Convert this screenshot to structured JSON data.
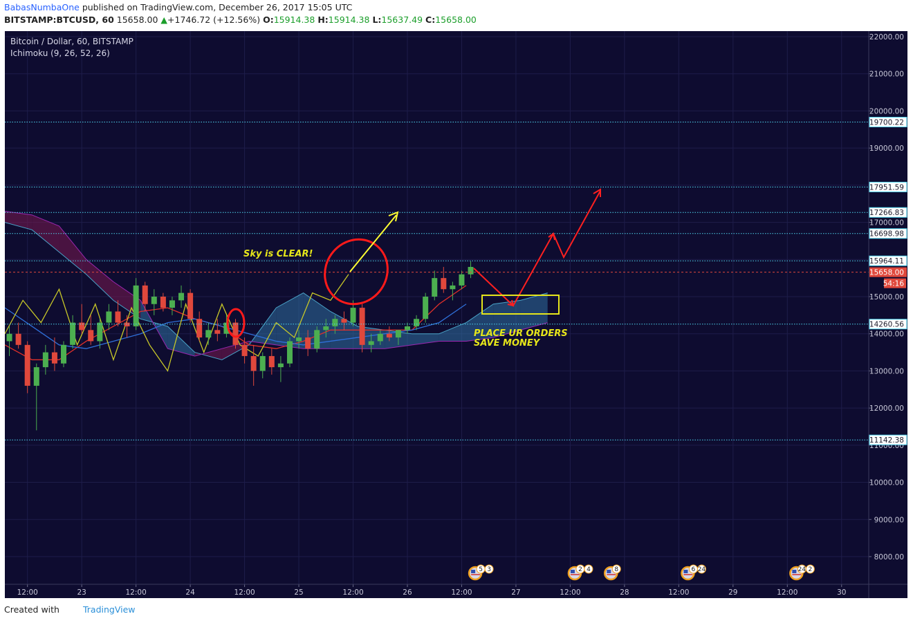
{
  "header": {
    "author": "BabasNumbaOne",
    "published": "published on TradingView.com, December 26, 2017 15:05 UTC",
    "symbol": "BITSTAMP:BTCUSD, 60",
    "last": "15658.00",
    "arrow": "▲",
    "change": "+1746.72 (+12.56%)",
    "o_label": "O:",
    "open": "15914.38",
    "h_label": "H:",
    "high": "15914.38",
    "l_label": "L:",
    "low": "15637.49",
    "c_label": "C:",
    "close": "15658.00"
  },
  "footer": {
    "created": "Created with",
    "brand": "TradingView"
  },
  "chart_data": {
    "type": "candlestick",
    "legend": [
      "Bitcoin / Dollar, 60, BITSTAMP",
      "Ichimoku (9, 26, 52, 26)"
    ],
    "background": "#0e0c30",
    "grid": true,
    "up_color": "#4caf50",
    "down_color": "#e0483c",
    "xlim": [
      7,
      198
    ],
    "xticks": [
      {
        "value": 12,
        "label": "12:00"
      },
      {
        "value": 24,
        "label": "23"
      },
      {
        "value": 36,
        "label": "12:00"
      },
      {
        "value": 48,
        "label": "24"
      },
      {
        "value": 60,
        "label": "12:00"
      },
      {
        "value": 72,
        "label": "25"
      },
      {
        "value": 84,
        "label": "12:00"
      },
      {
        "value": 96,
        "label": "26"
      },
      {
        "value": 108,
        "label": "12:00"
      },
      {
        "value": 120,
        "label": "27"
      },
      {
        "value": 132,
        "label": "12:00"
      },
      {
        "value": 144,
        "label": "28"
      },
      {
        "value": 156,
        "label": "12:00"
      },
      {
        "value": 168,
        "label": "29"
      },
      {
        "value": 180,
        "label": "12:00"
      },
      {
        "value": 192,
        "label": "30"
      }
    ],
    "ylim": [
      7255,
      22149
    ],
    "yticks": [
      {
        "value": 8000,
        "label": "8000.00"
      },
      {
        "value": 9000,
        "label": "9000.00"
      },
      {
        "value": 10000,
        "label": "10000.00"
      },
      {
        "value": 11000,
        "label": "11000.00"
      },
      {
        "value": 12000,
        "label": "12000.00"
      },
      {
        "value": 13000,
        "label": "13000.00"
      },
      {
        "value": 14000,
        "label": "14000.00"
      },
      {
        "value": 15000,
        "label": "15000.00"
      },
      {
        "value": 16000,
        "label": "16000.00"
      },
      {
        "value": 17000,
        "label": "17000.00"
      },
      {
        "value": 18000,
        "label": "18000.00"
      },
      {
        "value": 19000,
        "label": "19000.00"
      },
      {
        "value": 20000,
        "label": "20000.00"
      },
      {
        "value": 21000,
        "label": "21000.00"
      },
      {
        "value": 22000,
        "label": "22000.00"
      }
    ],
    "levels": [
      {
        "value": 19700.22,
        "label": "19700.22"
      },
      {
        "value": 17951.59,
        "label": "17951.59"
      },
      {
        "value": 17266.83,
        "label": "17266.83"
      },
      {
        "value": 16698.98,
        "label": "16698.98"
      },
      {
        "value": 15964.11,
        "label": "15964.11"
      },
      {
        "value": 14260.56,
        "label": "14260.56"
      },
      {
        "value": 11142.38,
        "label": "11142.38"
      }
    ],
    "level_color": "#4fd6f0",
    "current_price": {
      "value": 15658,
      "label": "15658.00"
    },
    "countdown": "54:16",
    "current_color": "#e0483c",
    "x": [
      8,
      10,
      12,
      14,
      16,
      18,
      20,
      22,
      24,
      26,
      28,
      30,
      32,
      34,
      36,
      38,
      40,
      42,
      44,
      46,
      48,
      50,
      52,
      54,
      56,
      58,
      60,
      62,
      64,
      66,
      68,
      70,
      72,
      74,
      76,
      78,
      80,
      82,
      84,
      86,
      88,
      90,
      92,
      94,
      96,
      98,
      100,
      102,
      104,
      106,
      108,
      110
    ],
    "open": [
      13800,
      14000,
      13700,
      12600,
      13100,
      13500,
      13200,
      13700,
      14300,
      14100,
      13800,
      14300,
      14600,
      14300,
      14200,
      15300,
      14800,
      15000,
      14700,
      14900,
      15100,
      14400,
      13900,
      14100,
      14000,
      14300,
      13700,
      13400,
      13000,
      13400,
      13100,
      13200,
      13800,
      13900,
      13600,
      14100,
      14200,
      14400,
      14300,
      14700,
      13700,
      13800,
      14000,
      13900,
      14100,
      14200,
      14400,
      15000,
      15500,
      15200,
      15300,
      15600
    ],
    "high": [
      14200,
      14300,
      13800,
      13200,
      13700,
      13900,
      13800,
      14500,
      14800,
      14500,
      14400,
      14800,
      14900,
      14500,
      15500,
      15400,
      15200,
      15100,
      15000,
      15300,
      15200,
      14600,
      14300,
      14400,
      14500,
      14400,
      13900,
      13700,
      13500,
      13600,
      13400,
      13900,
      14100,
      14100,
      14200,
      14400,
      14500,
      14600,
      14900,
      14800,
      14000,
      14100,
      14200,
      14100,
      14300,
      14500,
      15100,
      15700,
      15800,
      15400,
      15700,
      15950
    ],
    "low": [
      13400,
      13600,
      12400,
      11400,
      12900,
      13000,
      13100,
      13600,
      14000,
      13700,
      13600,
      14100,
      14200,
      13900,
      14100,
      14600,
      14500,
      14600,
      14500,
      14700,
      14300,
      13800,
      13700,
      13800,
      13900,
      13600,
      13200,
      12600,
      12800,
      12900,
      12700,
      13100,
      13600,
      13400,
      13500,
      13900,
      14000,
      14100,
      14200,
      13500,
      13500,
      13700,
      13800,
      13700,
      14000,
      14100,
      14300,
      14900,
      15100,
      14900,
      15200,
      15500
    ],
    "close": [
      14000,
      13700,
      12600,
      13100,
      13500,
      13200,
      13700,
      14300,
      14100,
      13800,
      14300,
      14600,
      14300,
      14200,
      15300,
      14800,
      15000,
      14700,
      14900,
      15100,
      14400,
      13900,
      14100,
      14000,
      14300,
      13700,
      13400,
      13000,
      13400,
      13100,
      13200,
      13800,
      13900,
      13600,
      14100,
      14200,
      14400,
      14300,
      14700,
      13700,
      13800,
      14000,
      13900,
      14100,
      14200,
      14400,
      15000,
      15500,
      15200,
      15300,
      15600,
      15800
    ],
    "cloud": {
      "x": [
        7,
        13,
        19,
        25,
        31,
        37,
        43,
        49,
        55,
        61,
        67,
        73,
        79,
        85,
        91,
        97,
        103,
        109,
        115,
        121,
        127
      ],
      "span_a": [
        17000,
        16800,
        16200,
        15600,
        14900,
        14400,
        14200,
        13500,
        13300,
        13700,
        14700,
        15100,
        14600,
        14200,
        14100,
        14000,
        14000,
        14300,
        14800,
        14900,
        15100
      ],
      "span_b": [
        17300,
        17200,
        16900,
        16000,
        15400,
        14900,
        13600,
        13400,
        13600,
        13800,
        13700,
        13600,
        13600,
        13600,
        13600,
        13700,
        13800,
        13800,
        13900,
        14100,
        14300
      ],
      "color_a": "#4aa3c8",
      "color_b": "#9c27b0",
      "fill_up": "#2f6fa0",
      "fill_down": "#7a1a50"
    },
    "conversion": {
      "color": "#e0302a",
      "x": [
        7,
        13,
        19,
        25,
        31,
        37,
        43,
        49,
        55,
        61,
        67,
        73,
        79,
        85,
        91,
        97,
        103,
        109
      ],
      "values": [
        13700,
        13300,
        13300,
        13800,
        14200,
        14600,
        14700,
        14400,
        14200,
        13700,
        13600,
        13800,
        14100,
        14100,
        14100,
        14100,
        14800,
        15300
      ]
    },
    "base": {
      "color": "#2f6fd8",
      "x": [
        7,
        13,
        19,
        25,
        31,
        37,
        43,
        49,
        55,
        61,
        67,
        73,
        79,
        85,
        91,
        97,
        103,
        109
      ],
      "values": [
        14700,
        14200,
        13700,
        13600,
        13800,
        14000,
        14300,
        14400,
        14200,
        14000,
        13800,
        13700,
        13800,
        13900,
        14000,
        14100,
        14300,
        14800
      ]
    },
    "lagging": {
      "color": "#c8c828",
      "x": [
        7,
        11,
        15,
        19,
        23,
        27,
        31,
        35,
        39,
        43,
        47,
        51,
        55,
        59,
        63,
        67,
        71,
        75,
        79,
        83
      ],
      "values": [
        14000,
        14900,
        14300,
        15200,
        13700,
        14800,
        13300,
        14700,
        13700,
        13000,
        14800,
        13500,
        14800,
        13700,
        13400,
        14300,
        13900,
        15100,
        14900,
        15600
      ]
    },
    "annotations": {
      "sky": "Sky is CLEAR!",
      "orders": "PLACE UR ORDERS",
      "save": "SAVE MONEY"
    },
    "events": [
      {
        "x": 111,
        "labels": [
          "5",
          "3"
        ]
      },
      {
        "x": 133,
        "labels": [
          "2",
          "4"
        ]
      },
      {
        "x": 141,
        "labels": [
          "8"
        ]
      },
      {
        "x": 158,
        "labels": [
          "6",
          "24"
        ]
      },
      {
        "x": 182,
        "labels": [
          "24",
          "2"
        ]
      }
    ]
  }
}
